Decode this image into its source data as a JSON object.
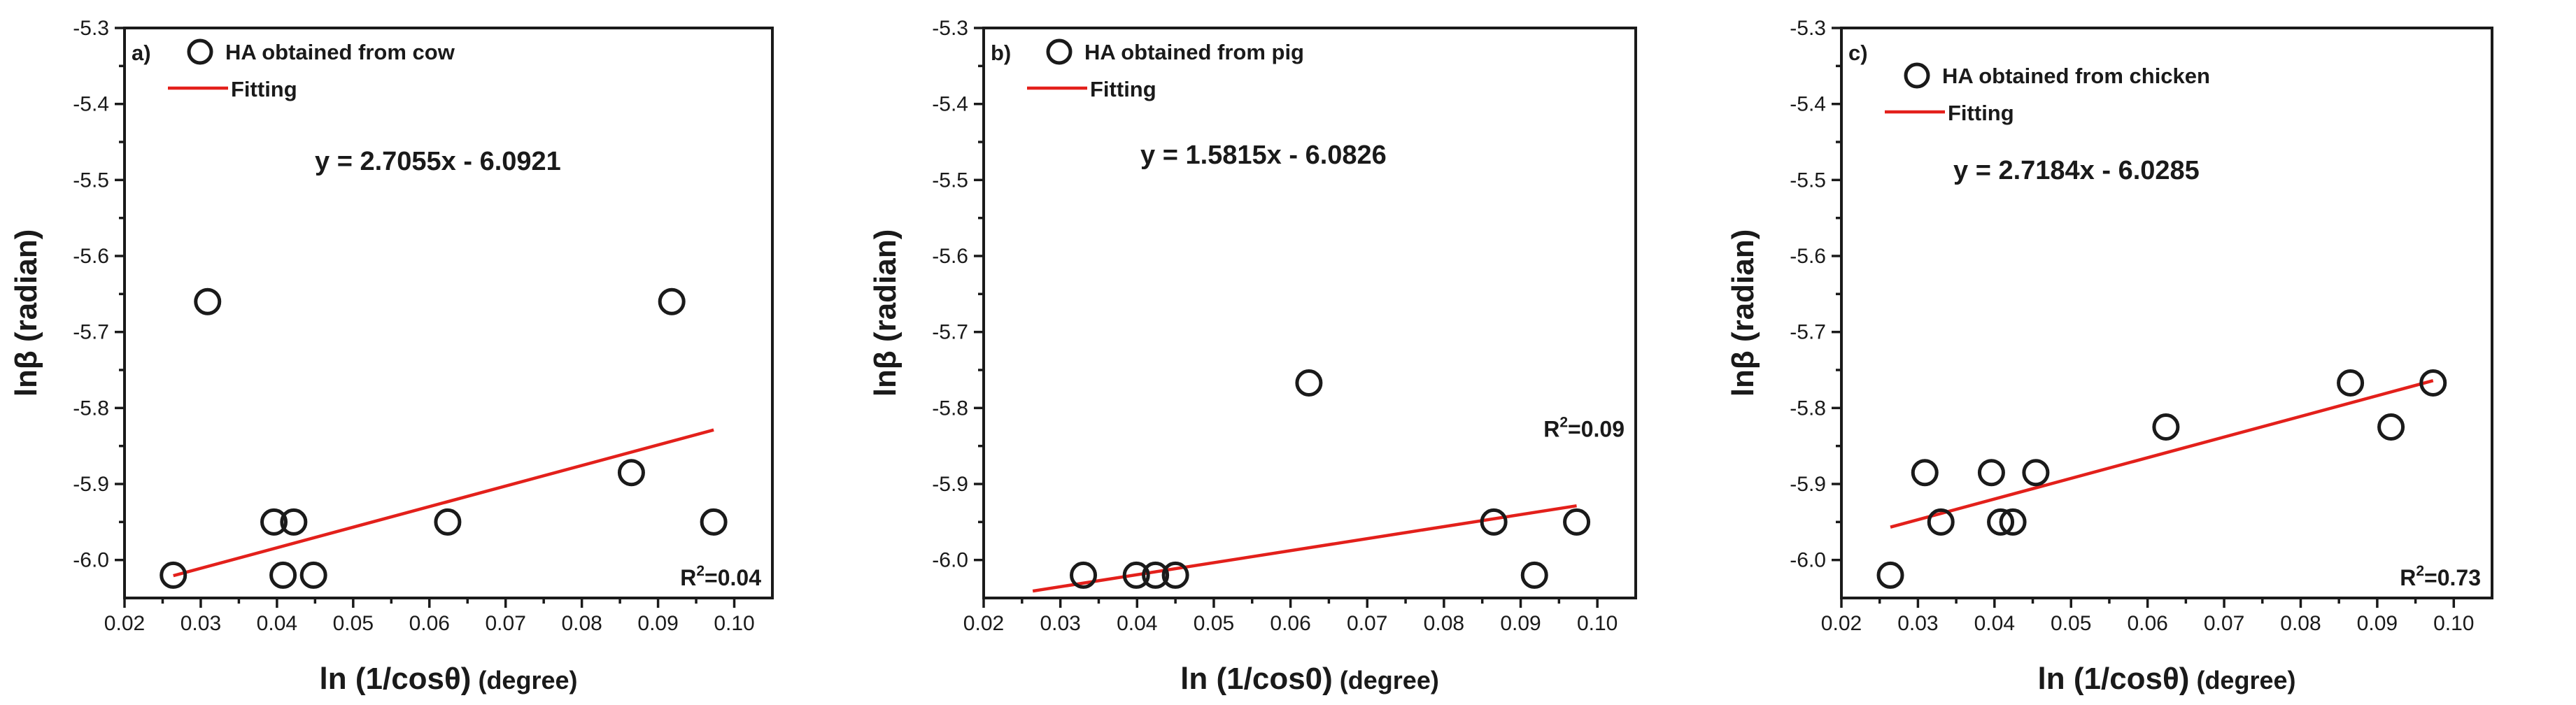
{
  "chart_data": [
    {
      "type": "scatter",
      "panel_label": "a)",
      "xlabel": "ln (1/cosθ)",
      "xlabel_unit": "(degree)",
      "ylabel": "lnβ (radian)",
      "xlim": [
        0.02,
        0.105
      ],
      "ylim": [
        -6.05,
        -5.3
      ],
      "xticks": [
        0.02,
        0.03,
        0.04,
        0.05,
        0.06,
        0.07,
        0.08,
        0.09,
        0.1
      ],
      "xtick_labels": [
        "0.02",
        "0.03",
        "0.04",
        "0.05",
        "0.06",
        "0.07",
        "0.08",
        "0.09",
        "0.10"
      ],
      "yticks": [
        -6.0,
        -5.9,
        -5.8,
        -5.7,
        -5.6,
        -5.5,
        -5.4,
        -5.3
      ],
      "ytick_labels": [
        "-6.0",
        "-5.9",
        "-5.8",
        "-5.7",
        "-5.6",
        "-5.5",
        "-5.4",
        "-5.3"
      ],
      "legend": {
        "points": "HA obtained from cow",
        "fit": "Fitting"
      },
      "equation": "y = 2.7055x - 6.0921",
      "r2_label": "R",
      "r2_sup": "2",
      "r2_value": "=0.04",
      "points": {
        "x": [
          0.0264,
          0.0309,
          0.0396,
          0.0408,
          0.0422,
          0.0448,
          0.0624,
          0.0865,
          0.0918,
          0.0973
        ],
        "y": [
          -6.02,
          -5.66,
          -5.95,
          -6.02,
          -5.95,
          -6.02,
          -5.95,
          -5.885,
          -5.66,
          -5.95
        ]
      },
      "fit": {
        "x": [
          0.0264,
          0.0973
        ],
        "slope": 2.7055,
        "intercept": -6.0921
      }
    },
    {
      "type": "scatter",
      "panel_label": "b)",
      "xlabel": "ln (1/cos0)",
      "xlabel_unit": "(degree)",
      "ylabel": "lnβ (radian)",
      "xlim": [
        0.02,
        0.105
      ],
      "ylim": [
        -6.05,
        -5.3
      ],
      "xticks": [
        0.02,
        0.03,
        0.04,
        0.05,
        0.06,
        0.07,
        0.08,
        0.09,
        0.1
      ],
      "xtick_labels": [
        "0.02",
        "0.03",
        "0.04",
        "0.05",
        "0.06",
        "0.07",
        "0.08",
        "0.09",
        "0.10"
      ],
      "yticks": [
        -6.0,
        -5.9,
        -5.8,
        -5.7,
        -5.6,
        -5.5,
        -5.4,
        -5.3
      ],
      "ytick_labels": [
        "-6.0",
        "-5.9",
        "-5.8",
        "-5.7",
        "-5.6",
        "-5.5",
        "-5.4",
        "-5.3"
      ],
      "legend": {
        "points": "HA obtained from pig",
        "fit": "Fitting"
      },
      "equation": "y = 1.5815x - 6.0826",
      "r2_label": "R",
      "r2_sup": "2",
      "r2_value": "=0.09",
      "points": {
        "x": [
          0.033,
          0.0399,
          0.0424,
          0.045,
          0.0624,
          0.0865,
          0.0918,
          0.0973
        ],
        "y": [
          -6.02,
          -6.02,
          -6.02,
          -6.02,
          -5.767,
          -5.95,
          -6.02,
          -5.95
        ]
      },
      "fit": {
        "x": [
          0.0264,
          0.0973
        ],
        "slope": 1.5815,
        "intercept": -6.0826
      }
    },
    {
      "type": "scatter",
      "panel_label": "c)",
      "xlabel": "ln (1/cosθ)",
      "xlabel_unit": "(degree)",
      "ylabel": "lnβ (radian)",
      "xlim": [
        0.02,
        0.105
      ],
      "ylim": [
        -6.05,
        -5.3
      ],
      "xticks": [
        0.02,
        0.03,
        0.04,
        0.05,
        0.06,
        0.07,
        0.08,
        0.09,
        0.1
      ],
      "xtick_labels": [
        "0.02",
        "0.03",
        "0.04",
        "0.05",
        "0.06",
        "0.07",
        "0.08",
        "0.09",
        "0.10"
      ],
      "yticks": [
        -6.0,
        -5.9,
        -5.8,
        -5.7,
        -5.6,
        -5.5,
        -5.4,
        -5.3
      ],
      "ytick_labels": [
        "-6.0",
        "-5.9",
        "-5.8",
        "-5.7",
        "-5.6",
        "-5.5",
        "-5.4",
        "-5.3"
      ],
      "legend": {
        "points": "HA obtained from chicken",
        "fit": "Fitting"
      },
      "equation": "y = 2.7184x - 6.0285",
      "r2_label": "R",
      "r2_sup": "2",
      "r2_value": "=0.73",
      "points": {
        "x": [
          0.0264,
          0.0309,
          0.033,
          0.0396,
          0.0408,
          0.0424,
          0.0454,
          0.0624,
          0.0865,
          0.0918,
          0.0973
        ],
        "y": [
          -6.02,
          -5.885,
          -5.95,
          -5.885,
          -5.95,
          -5.95,
          -5.885,
          -5.825,
          -5.767,
          -5.825,
          -5.767
        ]
      },
      "fit": {
        "x": [
          0.0264,
          0.0973
        ],
        "slope": 2.7184,
        "intercept": -6.0285
      }
    }
  ]
}
